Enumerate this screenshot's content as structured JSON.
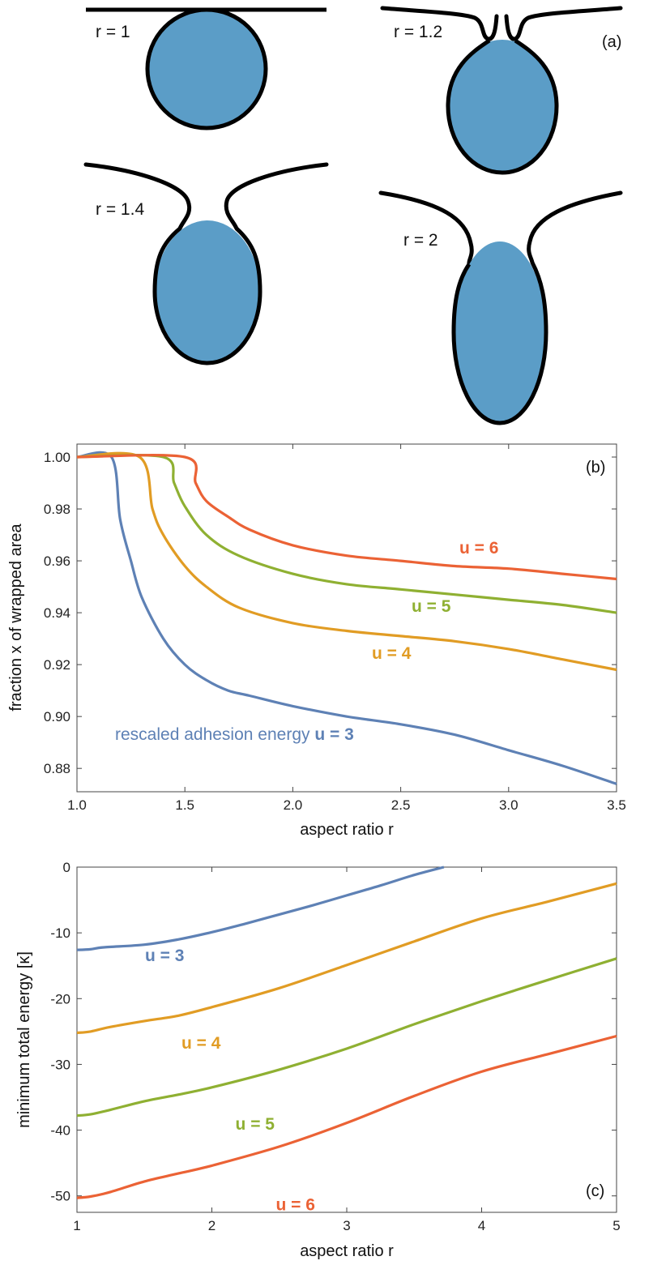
{
  "colors": {
    "u3": "#5e81b5",
    "u4": "#e19c24",
    "u5": "#8fb032",
    "u6": "#eb6235",
    "particle": "#5b9dc7",
    "membrane": "#000000"
  },
  "panel_a": {
    "tag": "(a)",
    "shapes": [
      {
        "label": "r = 1",
        "r": 1
      },
      {
        "label": "r = 1.2",
        "r": 1.2
      },
      {
        "label": "r = 1.4",
        "r": 1.4
      },
      {
        "label": "r = 2",
        "r": 2
      }
    ]
  },
  "chart_data": [
    {
      "type": "line",
      "panel": "(b)",
      "xlabel": "aspect ratio r",
      "ylabel": "fraction x of wrapped area",
      "xlim": [
        1.0,
        3.5
      ],
      "ylim": [
        0.871,
        1.005
      ],
      "xticks": [
        "1.0",
        "1.5",
        "2.0",
        "2.5",
        "3.0",
        "3.5"
      ],
      "yticks": [
        "1.00",
        "0.98",
        "0.96",
        "0.94",
        "0.92",
        "0.90",
        "0.88"
      ],
      "annotation_prefix": "rescaled adhesion energy",
      "series": [
        {
          "name": "u = 3",
          "color_key": "u3",
          "x": [
            1.0,
            1.16,
            1.2,
            1.25,
            1.3,
            1.4,
            1.5,
            1.6,
            1.7,
            1.8,
            2.0,
            2.25,
            2.5,
            2.75,
            3.0,
            3.25,
            3.5
          ],
          "y": [
            1.0,
            1.0,
            0.976,
            0.96,
            0.946,
            0.93,
            0.92,
            0.914,
            0.91,
            0.908,
            0.904,
            0.9,
            0.897,
            0.893,
            0.887,
            0.881,
            0.874
          ]
        },
        {
          "name": "u = 4",
          "color_key": "u4",
          "x": [
            1.0,
            1.29,
            1.35,
            1.4,
            1.5,
            1.6,
            1.75,
            2.0,
            2.25,
            2.5,
            2.75,
            3.0,
            3.25,
            3.5
          ],
          "y": [
            1.0,
            1.0,
            0.98,
            0.97,
            0.958,
            0.95,
            0.942,
            0.936,
            0.933,
            0.931,
            0.929,
            0.926,
            0.922,
            0.918
          ]
        },
        {
          "name": "u = 5",
          "color_key": "u5",
          "x": [
            1.0,
            1.4,
            1.45,
            1.5,
            1.6,
            1.75,
            2.0,
            2.25,
            2.5,
            2.75,
            3.0,
            3.25,
            3.5
          ],
          "y": [
            1.0,
            1.0,
            0.99,
            0.981,
            0.97,
            0.962,
            0.955,
            0.951,
            0.949,
            0.947,
            0.945,
            0.943,
            0.94
          ]
        },
        {
          "name": "u = 6",
          "color_key": "u6",
          "x": [
            1.0,
            1.5,
            1.55,
            1.6,
            1.7,
            1.8,
            2.0,
            2.25,
            2.5,
            2.75,
            3.0,
            3.25,
            3.5
          ],
          "y": [
            1.0,
            1.0,
            0.99,
            0.983,
            0.977,
            0.972,
            0.966,
            0.962,
            0.96,
            0.958,
            0.957,
            0.955,
            0.953
          ]
        }
      ]
    },
    {
      "type": "line",
      "panel": "(c)",
      "xlabel": "aspect ratio r",
      "ylabel": "minimum total energy  [κ]",
      "xlim": [
        1,
        5
      ],
      "ylim": [
        -52.5,
        0
      ],
      "xticks": [
        "1",
        "2",
        "3",
        "4",
        "5"
      ],
      "yticks": [
        "0",
        "-10",
        "-20",
        "-30",
        "-40",
        "-50"
      ],
      "series": [
        {
          "name": "u = 3",
          "color_key": "u3",
          "x": [
            1.0,
            1.1,
            1.2,
            1.5,
            1.75,
            2.0,
            2.25,
            2.5,
            2.75,
            3.0,
            3.25,
            3.5,
            3.72
          ],
          "y": [
            -12.6,
            -12.5,
            -12.2,
            -11.8,
            -11.0,
            -9.9,
            -8.6,
            -7.2,
            -5.8,
            -4.3,
            -2.8,
            -1.2,
            0.0
          ]
        },
        {
          "name": "u = 4",
          "color_key": "u4",
          "x": [
            1.0,
            1.1,
            1.25,
            1.5,
            1.75,
            2.0,
            2.5,
            3.0,
            3.5,
            4.0,
            4.5,
            5.0
          ],
          "y": [
            -25.2,
            -25.0,
            -24.3,
            -23.4,
            -22.6,
            -21.3,
            -18.4,
            -14.9,
            -11.3,
            -7.8,
            -5.2,
            -2.5
          ]
        },
        {
          "name": "u = 5",
          "color_key": "u5",
          "x": [
            1.0,
            1.1,
            1.25,
            1.5,
            1.75,
            2.0,
            2.5,
            3.0,
            3.5,
            4.0,
            4.5,
            5.0
          ],
          "y": [
            -37.8,
            -37.6,
            -36.9,
            -35.6,
            -34.6,
            -33.5,
            -30.8,
            -27.6,
            -23.9,
            -20.4,
            -17.1,
            -13.9
          ]
        },
        {
          "name": "u = 6",
          "color_key": "u6",
          "x": [
            1.0,
            1.1,
            1.25,
            1.5,
            1.75,
            2.0,
            2.5,
            3.0,
            3.5,
            4.0,
            4.5,
            5.0
          ],
          "y": [
            -50.3,
            -50.1,
            -49.4,
            -47.8,
            -46.6,
            -45.4,
            -42.5,
            -38.9,
            -34.8,
            -31.1,
            -28.4,
            -25.7
          ]
        }
      ],
      "labels": [
        {
          "text": "u = 3",
          "color_key": "u3",
          "x": 1.65,
          "y": -14.3
        },
        {
          "text": "u = 4",
          "color_key": "u4",
          "x": 1.92,
          "y": -27.6
        },
        {
          "text": "u = 5",
          "color_key": "u5",
          "x": 2.32,
          "y": -39.9
        },
        {
          "text": "u = 6",
          "color_key": "u6",
          "x": 2.62,
          "y": -52.2
        }
      ]
    }
  ]
}
